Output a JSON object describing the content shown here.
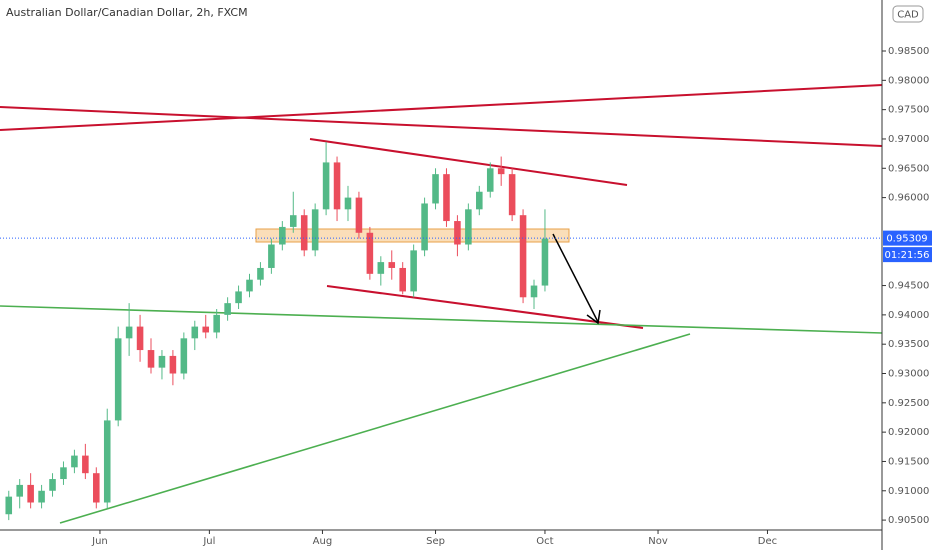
{
  "chart_data": {
    "type": "candlestick",
    "title": "Australian Dollar/Canadian Dollar, 2h, FXCM",
    "currency": "CAD",
    "current_price": 0.95309,
    "countdown": "01:21:56",
    "colors": {
      "up": "#53b987",
      "down": "#eb4d5c"
    },
    "grid": false,
    "x": [
      6,
      9,
      12,
      15,
      18,
      21,
      24,
      27,
      30,
      33,
      36,
      39,
      42,
      45,
      48,
      51,
      54,
      57,
      60,
      63,
      66,
      69,
      72,
      75,
      78,
      81,
      84,
      87,
      90,
      93,
      96,
      99,
      102,
      105,
      108,
      111,
      114,
      117,
      120,
      123,
      126,
      129,
      132,
      135,
      138,
      141,
      144,
      147,
      150,
      153
    ],
    "open": [
      0.906,
      0.909,
      0.911,
      0.908,
      0.91,
      0.912,
      0.914,
      0.916,
      0.913,
      0.908,
      0.922,
      0.936,
      0.938,
      0.934,
      0.931,
      0.933,
      0.93,
      0.936,
      0.938,
      0.937,
      0.94,
      0.942,
      0.944,
      0.946,
      0.948,
      0.952,
      0.955,
      0.957,
      0.951,
      0.958,
      0.966,
      0.958,
      0.96,
      0.954,
      0.947,
      0.949,
      0.948,
      0.944,
      0.951,
      0.959,
      0.964,
      0.956,
      0.952,
      0.958,
      0.961,
      0.965,
      0.964,
      0.957,
      0.943,
      0.945
    ],
    "high": [
      0.91,
      0.912,
      0.913,
      0.911,
      0.913,
      0.915,
      0.917,
      0.918,
      0.914,
      0.924,
      0.938,
      0.942,
      0.94,
      0.936,
      0.934,
      0.934,
      0.937,
      0.939,
      0.94,
      0.941,
      0.943,
      0.945,
      0.947,
      0.949,
      0.953,
      0.956,
      0.961,
      0.958,
      0.959,
      0.9695,
      0.967,
      0.962,
      0.961,
      0.955,
      0.95,
      0.951,
      0.949,
      0.952,
      0.96,
      0.965,
      0.965,
      0.957,
      0.959,
      0.962,
      0.966,
      0.967,
      0.965,
      0.958,
      0.946,
      0.958
    ],
    "low": [
      0.905,
      0.907,
      0.907,
      0.907,
      0.909,
      0.911,
      0.913,
      0.912,
      0.907,
      0.907,
      0.921,
      0.933,
      0.932,
      0.93,
      0.929,
      0.928,
      0.929,
      0.934,
      0.936,
      0.936,
      0.939,
      0.941,
      0.943,
      0.945,
      0.947,
      0.951,
      0.954,
      0.95,
      0.95,
      0.957,
      0.956,
      0.956,
      0.953,
      0.946,
      0.945,
      0.946,
      0.9435,
      0.943,
      0.95,
      0.958,
      0.955,
      0.95,
      0.951,
      0.957,
      0.96,
      0.962,
      0.956,
      0.942,
      0.941,
      0.944
    ],
    "close": [
      0.909,
      0.911,
      0.908,
      0.91,
      0.912,
      0.914,
      0.916,
      0.913,
      0.908,
      0.922,
      0.936,
      0.938,
      0.934,
      0.931,
      0.933,
      0.93,
      0.936,
      0.938,
      0.937,
      0.94,
      0.942,
      0.944,
      0.946,
      0.948,
      0.952,
      0.955,
      0.957,
      0.951,
      0.958,
      0.966,
      0.958,
      0.96,
      0.954,
      0.947,
      0.949,
      0.948,
      0.944,
      0.951,
      0.959,
      0.964,
      0.956,
      0.952,
      0.958,
      0.961,
      0.965,
      0.964,
      0.957,
      0.943,
      0.945,
      0.953
    ],
    "xlim": [
      3.6,
      245.4
    ],
    "ylim": [
      0.8999,
      0.9937
    ],
    "xticks": [
      {
        "value": 31,
        "label": "Jun"
      },
      {
        "value": 61,
        "label": "Jul"
      },
      {
        "value": 92,
        "label": "Aug"
      },
      {
        "value": 123,
        "label": "Sep"
      },
      {
        "value": 153,
        "label": "Oct"
      },
      {
        "value": 184,
        "label": "Nov"
      },
      {
        "value": 214,
        "label": "Dec"
      }
    ],
    "yticks": [
      {
        "value": 0.905,
        "label": "0.90500"
      },
      {
        "value": 0.91,
        "label": "0.91000"
      },
      {
        "value": 0.915,
        "label": "0.91500"
      },
      {
        "value": 0.92,
        "label": "0.92000"
      },
      {
        "value": 0.925,
        "label": "0.92500"
      },
      {
        "value": 0.93,
        "label": "0.93000"
      },
      {
        "value": 0.935,
        "label": "0.93500"
      },
      {
        "value": 0.94,
        "label": "0.94000"
      },
      {
        "value": 0.945,
        "label": "0.94500"
      },
      {
        "value": 0.96,
        "label": "0.96000"
      },
      {
        "value": 0.965,
        "label": "0.96500"
      },
      {
        "value": 0.97,
        "label": "0.97000"
      },
      {
        "value": 0.975,
        "label": "0.97500"
      },
      {
        "value": 0.98,
        "label": "0.98000"
      },
      {
        "value": 0.985,
        "label": "0.98500"
      }
    ]
  }
}
